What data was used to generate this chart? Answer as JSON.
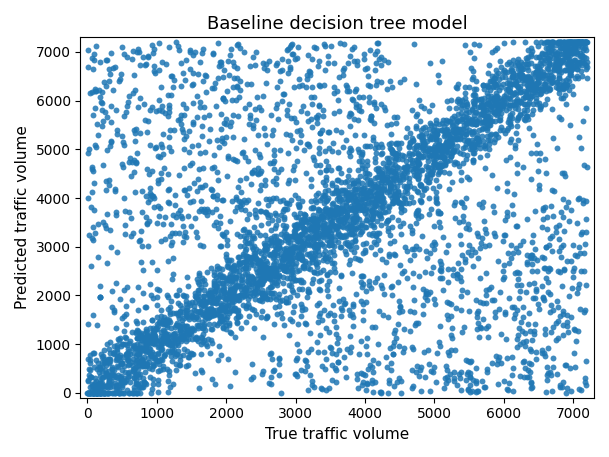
{
  "title": "Baseline decision tree model",
  "xlabel": "True traffic volume",
  "ylabel": "Predicted traffic volume",
  "xlim": [
    -100,
    7300
  ],
  "ylim": [
    -100,
    7300
  ],
  "xticks": [
    0,
    1000,
    2000,
    3000,
    4000,
    5000,
    6000,
    7000
  ],
  "yticks": [
    0,
    1000,
    2000,
    3000,
    4000,
    5000,
    6000,
    7000
  ],
  "scatter_color": "#1f77b4",
  "marker_size": 18,
  "alpha": 0.85,
  "background_color": "#ffffff",
  "title_fontsize": 13,
  "label_fontsize": 11
}
